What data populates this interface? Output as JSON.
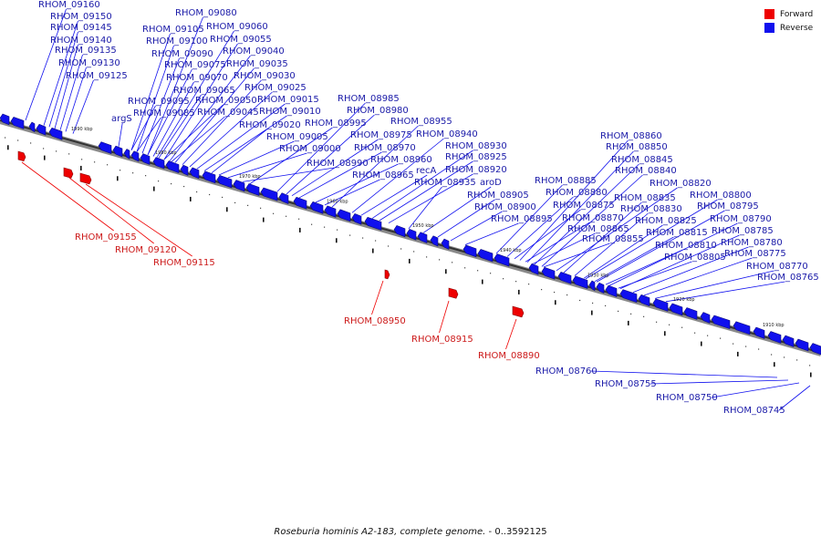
{
  "legend": {
    "forward": {
      "label": "Forward",
      "color": "#ee0000"
    },
    "reverse": {
      "label": "Reverse",
      "color": "#1010ee"
    }
  },
  "caption": {
    "species": "Roseburia hominis A2-183, complete genome.",
    "range": " - 0..3592125"
  },
  "scale_labels": [
    "1980 kbp",
    "1970 kbp",
    "1960 kbp",
    "1950 kbp",
    "1940 kbp",
    "1930 kbp",
    "1920 kbp",
    "1910 kbp",
    "1990 kbp"
  ],
  "genes_reverse": [
    "RHOM_09160",
    "RHOM_09150",
    "RHOM_09145",
    "RHOM_09140",
    "RHOM_09135",
    "RHOM_09130",
    "RHOM_09125",
    "RHOM_09080",
    "RHOM_09105",
    "RHOM_09060",
    "RHOM_09100",
    "RHOM_09055",
    "RHOM_09090",
    "RHOM_09040",
    "RHOM_09075",
    "RHOM_09035",
    "RHOM_09070",
    "RHOM_09030",
    "RHOM_09065",
    "RHOM_09025",
    "RHOM_09095",
    "RHOM_09050",
    "RHOM_09015",
    "RHOM_09085",
    "RHOM_09045",
    "RHOM_09010",
    "argS",
    "RHOM_09020",
    "RHOM_09005",
    "RHOM_09000",
    "RHOM_08990",
    "RHOM_08985",
    "RHOM_08980",
    "RHOM_08995",
    "RHOM_08975",
    "RHOM_08970",
    "RHOM_08965",
    "RHOM_08955",
    "RHOM_08940",
    "RHOM_08960",
    "RHOM_08930",
    "RHOM_08925",
    "recA",
    "RHOM_08920",
    "RHOM_08935",
    "aroD",
    "RHOM_08905",
    "RHOM_08900",
    "RHOM_08895",
    "RHOM_08860",
    "RHOM_08850",
    "RHOM_08845",
    "RHOM_08840",
    "RHOM_08885",
    "RHOM_08820",
    "RHOM_08880",
    "RHOM_08835",
    "RHOM_08800",
    "RHOM_08875",
    "RHOM_08830",
    "RHOM_08795",
    "RHOM_08870",
    "RHOM_08825",
    "RHOM_08790",
    "RHOM_08865",
    "RHOM_08815",
    "RHOM_08785",
    "RHOM_08855",
    "RHOM_08810",
    "RHOM_08780",
    "RHOM_08775",
    "RHOM_08805",
    "RHOM_08770",
    "RHOM_08765",
    "RHOM_08760",
    "RHOM_08755",
    "RHOM_08750",
    "RHOM_08745"
  ],
  "genes_forward": [
    "RHOM_09155",
    "RHOM_09120",
    "RHOM_09115",
    "RHOM_08950",
    "RHOM_08915",
    "RHOM_08890"
  ]
}
